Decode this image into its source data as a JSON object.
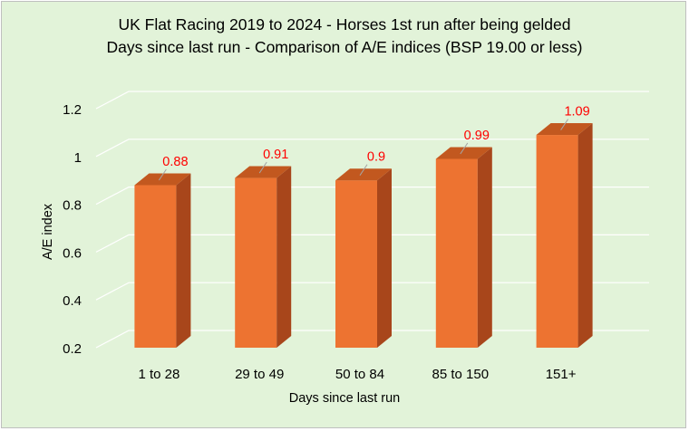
{
  "chart_data": {
    "type": "bar",
    "title": "UK Flat Racing 2019 to 2024 - Horses 1st run after being gelded",
    "subtitle": "Days since last run - Comparison of A/E indices (BSP 19.00 or less)",
    "xlabel": "Days since last run",
    "ylabel": "A/E index",
    "categories": [
      "1 to 28",
      "29 to 49",
      "50 to 84",
      "85 to 150",
      "151+"
    ],
    "values": [
      0.88,
      0.91,
      0.9,
      0.99,
      1.09
    ],
    "data_labels": [
      "0.88",
      "0.91",
      "0.9",
      "0.99",
      "1.09"
    ],
    "ylim": [
      0.2,
      1.2
    ],
    "yticks": [
      0.2,
      0.4,
      0.6,
      0.8,
      1,
      1.2
    ],
    "ytick_labels": [
      "0.2",
      "0.4",
      "0.6",
      "0.8",
      "1",
      "1.2"
    ],
    "grid": true,
    "legend": "none",
    "style": "3d-column"
  },
  "colors": {
    "background": "#e2f3d9",
    "bar_front": "#ed7331",
    "bar_side": "#a8461b",
    "bar_top": "#c2581f",
    "gridline": "#ffffff",
    "data_label": "#ff0000",
    "leader_line": "#a5a5a5"
  }
}
